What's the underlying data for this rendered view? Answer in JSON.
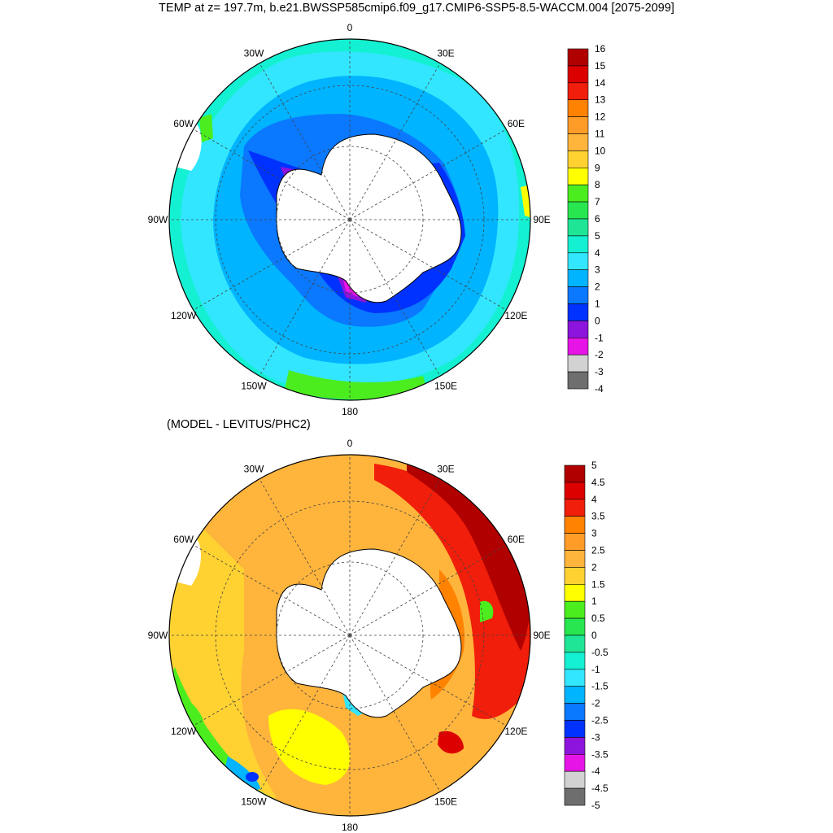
{
  "title": "TEMP at z= 197.7m, b.e21.BWSSP585cmip6.f09_g17.CMIP6-SSP5-8.5-WACCM.004 [2075-2099]",
  "subtitle": "(MODEL - LEVITUS/PHC2)",
  "longitude_labels": [
    "0",
    "30E",
    "60E",
    "90E",
    "120E",
    "150E",
    "180",
    "150W",
    "120W",
    "90W",
    "60W",
    "30W"
  ],
  "top_colorbar": {
    "labels": [
      "16",
      "15",
      "14",
      "13",
      "12",
      "11",
      "10",
      "9",
      "8",
      "7",
      "6",
      "5",
      "4",
      "3",
      "2",
      "1",
      "0",
      "-1",
      "-2",
      "-3",
      "-4"
    ],
    "colors": [
      "#b00000",
      "#dc0000",
      "#f01e0a",
      "#ff8200",
      "#ff9c28",
      "#ffb43c",
      "#ffd232",
      "#ffff00",
      "#4ced1e",
      "#28e650",
      "#1ee696",
      "#14f0d2",
      "#32e6ff",
      "#00b4ff",
      "#0a78ff",
      "#0032ff",
      "#8c14dc",
      "#e614e6",
      "#d2d2d2",
      "#6e6e6e"
    ]
  },
  "bottom_colorbar": {
    "labels": [
      "5",
      "4.5",
      "4",
      "3.5",
      "3",
      "2.5",
      "2",
      "1.5",
      "1",
      "0.5",
      "0",
      "-0.5",
      "-1",
      "-1.5",
      "-2",
      "-2.5",
      "-3",
      "-3.5",
      "-4",
      "-4.5",
      "-5"
    ],
    "colors": [
      "#b00000",
      "#dc0000",
      "#f01e0a",
      "#ff8200",
      "#ff9c28",
      "#ffb43c",
      "#ffd232",
      "#ffff00",
      "#4ced1e",
      "#28e650",
      "#1ee696",
      "#14f0d2",
      "#32e6ff",
      "#00b4ff",
      "#0a78ff",
      "#0032ff",
      "#8c14dc",
      "#e614e6",
      "#d2d2d2",
      "#6e6e6e"
    ]
  }
}
